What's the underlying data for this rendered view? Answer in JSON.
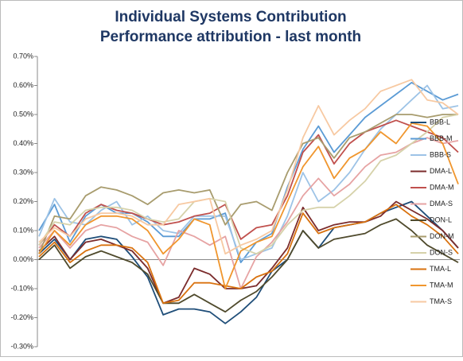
{
  "chart_data": {
    "type": "line",
    "title": "Individual Systems Contribution",
    "subtitle": "Performance attribution - last month",
    "categories": [
      null,
      null,
      null,
      null,
      null,
      null,
      null,
      null,
      null,
      null,
      null,
      null,
      null,
      null,
      null,
      null,
      null,
      null,
      null,
      null,
      null,
      null,
      null,
      null,
      null,
      null,
      null,
      null
    ],
    "ylim": [
      -0.3,
      0.7
    ],
    "yticks": [
      {
        "value": -0.3,
        "label": "-0.30%"
      },
      {
        "value": -0.2,
        "label": "-0.20%"
      },
      {
        "value": -0.1,
        "label": "-0.10%"
      },
      {
        "value": 0,
        "label": "0.00%"
      },
      {
        "value": 0.1,
        "label": "0.10%"
      },
      {
        "value": 0.2,
        "label": "0.20%"
      },
      {
        "value": 0.3,
        "label": "0.30%"
      },
      {
        "value": 0.4,
        "label": "0.40%"
      },
      {
        "value": 0.5,
        "label": "0.50%"
      },
      {
        "value": 0.6,
        "label": "0.60%"
      },
      {
        "value": 0.7,
        "label": "0.70%"
      }
    ],
    "grid": false,
    "legend": "right",
    "series": [
      {
        "name": "BBB-L",
        "color": "#1f4e79",
        "values": [
          0.02,
          0.07,
          0.0,
          0.07,
          0.08,
          0.07,
          0.01,
          -0.06,
          -0.19,
          -0.17,
          -0.17,
          -0.18,
          -0.22,
          -0.18,
          -0.13,
          -0.04,
          0.0,
          0.1,
          0.04,
          0.11,
          0.12,
          0.13,
          0.16,
          0.18,
          0.2,
          0.15,
          0.1,
          0.04
        ]
      },
      {
        "name": "BBB-M",
        "color": "#5b9bd5",
        "values": [
          0.1,
          0.19,
          0.06,
          0.15,
          0.19,
          0.16,
          0.16,
          0.13,
          0.08,
          0.08,
          0.14,
          0.14,
          0.16,
          -0.01,
          0.06,
          0.09,
          0.25,
          0.38,
          0.46,
          0.37,
          0.43,
          0.49,
          0.53,
          0.57,
          0.61,
          0.58,
          0.55,
          0.57
        ]
      },
      {
        "name": "BBB-S",
        "color": "#9dc3e6",
        "values": [
          0.08,
          0.21,
          0.13,
          0.12,
          0.17,
          0.2,
          0.12,
          0.15,
          0.1,
          0.09,
          0.15,
          0.15,
          0.15,
          0.0,
          0.02,
          0.04,
          0.15,
          0.3,
          0.2,
          0.24,
          0.3,
          0.38,
          0.45,
          0.5,
          0.55,
          0.6,
          0.52,
          0.53
        ]
      },
      {
        "name": "DMA-L",
        "color": "#7b2c2c",
        "values": [
          0.03,
          0.08,
          0.0,
          0.06,
          0.07,
          0.05,
          0.03,
          -0.03,
          -0.15,
          -0.13,
          -0.03,
          -0.05,
          -0.1,
          -0.1,
          -0.09,
          -0.03,
          0.04,
          0.18,
          0.1,
          0.12,
          0.13,
          0.13,
          0.15,
          0.2,
          0.17,
          0.14,
          0.1,
          0.04
        ]
      },
      {
        "name": "DMA-M",
        "color": "#c0504d",
        "values": [
          0.05,
          0.12,
          0.08,
          0.16,
          0.19,
          0.17,
          0.16,
          0.14,
          0.12,
          0.13,
          0.15,
          0.16,
          0.19,
          0.07,
          0.11,
          0.12,
          0.22,
          0.37,
          0.43,
          0.33,
          0.4,
          0.44,
          0.46,
          0.48,
          0.46,
          0.44,
          0.42,
          0.37
        ]
      },
      {
        "name": "DMA-S",
        "color": "#e6a3a3",
        "values": [
          0.04,
          0.1,
          0.04,
          0.1,
          0.12,
          0.11,
          0.08,
          0.06,
          -0.02,
          0.1,
          0.08,
          0.05,
          0.08,
          -0.1,
          0.01,
          0.06,
          0.13,
          0.22,
          0.28,
          0.22,
          0.26,
          0.32,
          0.36,
          0.37,
          0.4,
          0.42,
          0.4,
          0.41
        ]
      },
      {
        "name": "DON-L",
        "color": "#4f4a2c",
        "values": [
          0.0,
          0.05,
          -0.03,
          0.01,
          0.03,
          0.01,
          -0.01,
          -0.05,
          -0.15,
          -0.15,
          -0.12,
          -0.15,
          -0.18,
          -0.14,
          -0.11,
          -0.06,
          0.0,
          0.1,
          0.04,
          0.07,
          0.08,
          0.09,
          0.12,
          0.14,
          0.1,
          0.05,
          0.02,
          -0.01
        ]
      },
      {
        "name": "DON-M",
        "color": "#a89c6e",
        "values": [
          0.02,
          0.15,
          0.14,
          0.22,
          0.25,
          0.24,
          0.22,
          0.19,
          0.23,
          0.24,
          0.23,
          0.24,
          0.12,
          0.19,
          0.2,
          0.17,
          0.3,
          0.4,
          0.42,
          0.35,
          0.42,
          0.44,
          0.47,
          0.5,
          0.5,
          0.49,
          0.5,
          0.5
        ]
      },
      {
        "name": "DON-S",
        "color": "#d6d2aa",
        "values": [
          0.05,
          0.13,
          0.12,
          0.17,
          0.18,
          0.18,
          0.17,
          0.14,
          0.13,
          0.14,
          0.2,
          0.21,
          0.2,
          0.04,
          0.02,
          0.05,
          0.12,
          0.17,
          0.18,
          0.18,
          0.22,
          0.27,
          0.34,
          0.36,
          0.4,
          0.44,
          0.49,
          0.5
        ]
      },
      {
        "name": "TMA-L",
        "color": "#d9720f",
        "values": [
          0.01,
          0.06,
          -0.01,
          0.03,
          0.05,
          0.05,
          0.04,
          -0.01,
          -0.15,
          -0.14,
          -0.08,
          -0.08,
          -0.09,
          -0.1,
          -0.06,
          -0.04,
          0.02,
          0.16,
          0.09,
          0.11,
          0.12,
          0.13,
          0.16,
          0.19,
          0.15,
          0.12,
          0.08,
          0.02
        ]
      },
      {
        "name": "TMA-M",
        "color": "#f0962e",
        "values": [
          0.02,
          0.1,
          0.05,
          0.12,
          0.15,
          0.15,
          0.14,
          0.1,
          0.02,
          0.07,
          0.14,
          0.12,
          -0.1,
          0.03,
          0.06,
          0.08,
          0.2,
          0.32,
          0.39,
          0.28,
          0.35,
          0.38,
          0.44,
          0.4,
          0.47,
          0.46,
          0.4,
          0.26
        ]
      },
      {
        "name": "TMA-S",
        "color": "#f7c9a2",
        "values": [
          0.06,
          0.11,
          0.08,
          0.14,
          0.16,
          0.16,
          0.15,
          0.12,
          0.12,
          0.19,
          0.2,
          0.21,
          0.02,
          0.05,
          0.07,
          0.1,
          0.24,
          0.42,
          0.53,
          0.43,
          0.48,
          0.52,
          0.58,
          0.6,
          0.62,
          0.55,
          0.54,
          0.5
        ]
      }
    ]
  }
}
